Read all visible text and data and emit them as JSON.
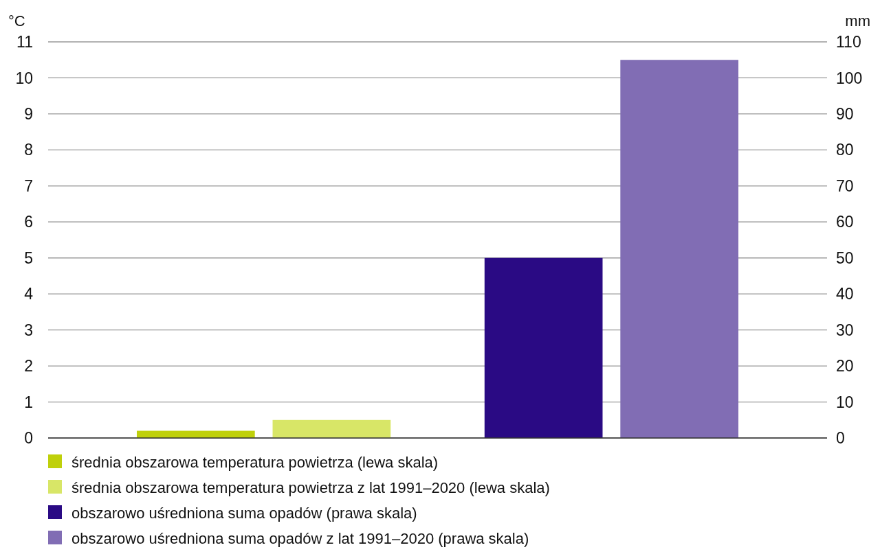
{
  "chart_data": {
    "type": "bar",
    "categories": [
      null,
      null
    ],
    "ylabel": "°C",
    "y2label": "mm",
    "ylim": [
      0,
      11
    ],
    "yticks": [
      0,
      1,
      2,
      3,
      4,
      5,
      6,
      7,
      8,
      9,
      10,
      11
    ],
    "y2lim": [
      0,
      110
    ],
    "y2ticks": [
      0,
      10,
      20,
      30,
      40,
      50,
      60,
      70,
      80,
      90,
      100,
      110
    ],
    "grid": "y",
    "legend": "bottom",
    "series": [
      {
        "name": "średnia obszarowa temperatura powietrza (lewa skala)",
        "color": "#bfd00b",
        "values": [
          0.2,
          null
        ]
      },
      {
        "name": "średnia obszarowa temperatura powietrza z lat 1991–2020 (lewa skala)",
        "color": "#d8e667",
        "values": [
          0.5,
          null
        ]
      },
      {
        "name": "obszarowo uśredniona suma opadów (prawa skala)",
        "color": "#2a0a84",
        "values": [
          null,
          50
        ],
        "axis": "y2"
      },
      {
        "name": "obszarowo uśredniona suma opadów z lat 1991–2020 (prawa skala)",
        "color": "#816db4",
        "values": [
          null,
          105
        ],
        "axis": "y2"
      }
    ]
  }
}
